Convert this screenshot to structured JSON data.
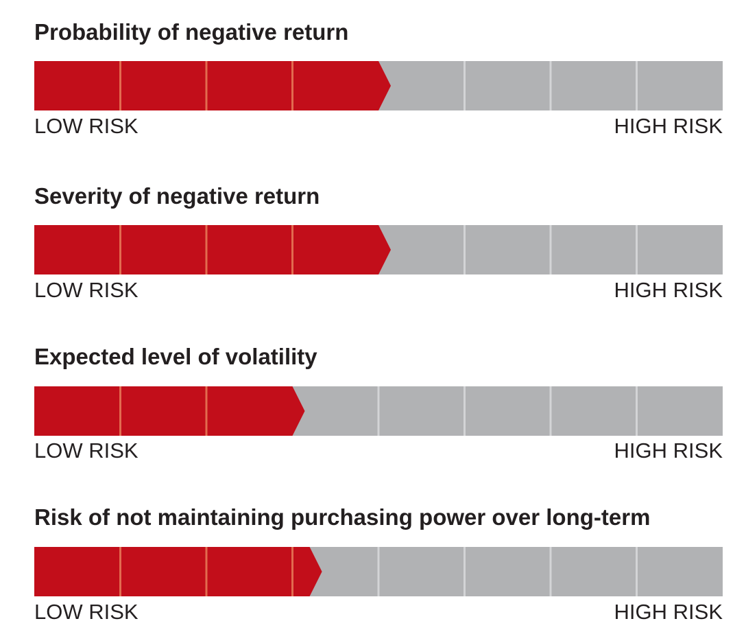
{
  "colors": {
    "filled": "#c20e1a",
    "empty": "#b1b2b4",
    "filled_divider": "#e26b4f",
    "empty_divider": "#d3d4d6",
    "text": "#231f20"
  },
  "chart_data": [
    {
      "type": "bar",
      "title": "Probability of negative return",
      "segments_total": 8,
      "value": 4,
      "min_label": "LOW RISK",
      "max_label": "HIGH RISK"
    },
    {
      "type": "bar",
      "title": "Severity of negative return",
      "segments_total": 8,
      "value": 4,
      "min_label": "LOW RISK",
      "max_label": "HIGH RISK"
    },
    {
      "type": "bar",
      "title": "Expected level of volatility",
      "segments_total": 8,
      "value": 3,
      "min_label": "LOW RISK",
      "max_label": "HIGH RISK"
    },
    {
      "type": "bar",
      "title": "Risk of not maintaining purchasing power over long-term",
      "segments_total": 8,
      "value": 3.2,
      "min_label": "LOW RISK",
      "max_label": "HIGH RISK"
    }
  ]
}
